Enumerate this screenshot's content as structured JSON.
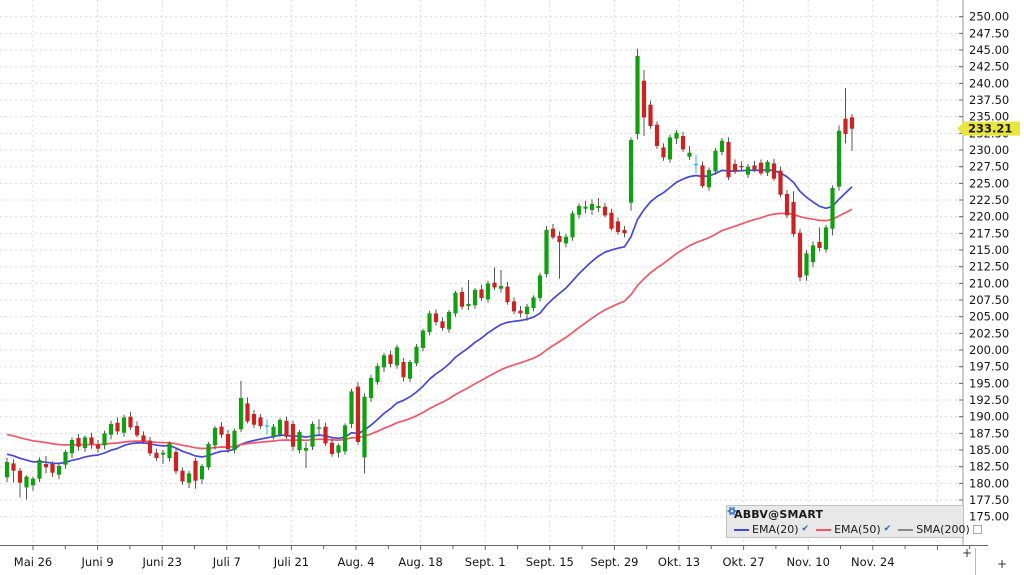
{
  "legend": {
    "title": "ABBV@SMART",
    "items": [
      {
        "label": "EMA(20)",
        "color": "#4646d8",
        "checked": true
      },
      {
        "label": "EMA(50)",
        "color": "#ee5868",
        "checked": true
      },
      {
        "label": "SMA(200)",
        "color": "#888888",
        "checked": false
      }
    ]
  },
  "controls": {
    "corner_plus": "+",
    "scroll_plus": "+"
  },
  "chart_data": {
    "type": "candlestick",
    "title": "ABBV@SMART",
    "xlabel": "",
    "ylabel": "",
    "grid": true,
    "y_axis_ticks": [
      "250.00",
      "247.50",
      "245.00",
      "242.50",
      "240.00",
      "237.50",
      "235.00",
      "232.50",
      "230.00",
      "227.50",
      "225.00",
      "222.50",
      "220.00",
      "217.50",
      "215.00",
      "212.50",
      "210.00",
      "207.50",
      "205.00",
      "202.50",
      "200.00",
      "197.50",
      "195.00",
      "192.50",
      "190.00",
      "187.50",
      "185.00",
      "182.50",
      "180.00",
      "177.50",
      "175.00"
    ],
    "y_tick_values": [
      250,
      247.5,
      245,
      242.5,
      240,
      237.5,
      235,
      232.5,
      230,
      227.5,
      225,
      222.5,
      220,
      217.5,
      215,
      212.5,
      210,
      207.5,
      205,
      202.5,
      200,
      197.5,
      195,
      192.5,
      190,
      187.5,
      185,
      182.5,
      180,
      177.5,
      175
    ],
    "y_range_visible": [
      170.8,
      252.5
    ],
    "x_axis_labels": [
      "Mai 26",
      "Juni 9",
      "Juni 23",
      "Juli 7",
      "Juli 21",
      "Aug. 4",
      "Aug. 18",
      "Sept. 1",
      "Sept. 15",
      "Sept. 29",
      "Okt. 13",
      "Okt. 27",
      "Nov. 10",
      "Nov. 24"
    ],
    "last_price": 233.21,
    "last_price_label": "233.21",
    "overlays": [
      {
        "name": "EMA(20)",
        "type": "ema",
        "period": 20,
        "seed": 184.5,
        "color": "#4646d8",
        "visible": true
      },
      {
        "name": "EMA(50)",
        "type": "ema",
        "period": 50,
        "seed": 187.5,
        "color": "#ee5868",
        "visible": true
      },
      {
        "name": "SMA(200)",
        "type": "sma",
        "period": 200,
        "color": "#888888",
        "visible": false
      }
    ],
    "colors": {
      "up": "#0fa00f",
      "down": "#cc2222",
      "neutral": "#35b8c8",
      "wick": "#555555",
      "grid": "#d9d9d9",
      "axis_text": "#141414",
      "axis_line": "#666666",
      "border": "#9a9a9a",
      "price_tag_bg": "#e9e43e",
      "price_tag_text": "#1a1a00"
    },
    "candles": [
      [
        180.9,
        183.8,
        180.2,
        183.2
      ],
      [
        183.0,
        183.6,
        180.1,
        181.9
      ],
      [
        181.9,
        182.3,
        177.9,
        180.1
      ],
      [
        179.4,
        181.2,
        177.6,
        181.0
      ],
      [
        179.7,
        181.0,
        178.9,
        180.7
      ],
      [
        180.7,
        183.9,
        180.2,
        183.5
      ],
      [
        182.9,
        184.1,
        181.5,
        182.4
      ],
      [
        182.9,
        183.3,
        181.0,
        181.6
      ],
      [
        181.3,
        183.0,
        180.6,
        182.6
      ],
      [
        182.8,
        185.0,
        182.2,
        184.7
      ],
      [
        184.5,
        186.9,
        183.8,
        186.5
      ],
      [
        186.8,
        187.4,
        184.9,
        185.5
      ],
      [
        185.3,
        187.2,
        184.7,
        186.9
      ],
      [
        186.9,
        187.6,
        185.2,
        185.9
      ],
      [
        185.8,
        186.5,
        184.6,
        185.2
      ],
      [
        185.7,
        187.9,
        185.1,
        187.5
      ],
      [
        187.3,
        189.4,
        186.6,
        188.9
      ],
      [
        189.1,
        189.9,
        187.3,
        187.8
      ],
      [
        187.6,
        190.3,
        187.0,
        189.9
      ],
      [
        190.0,
        190.7,
        188.0,
        188.4
      ],
      [
        188.6,
        189.3,
        186.9,
        187.2
      ],
      [
        187.2,
        187.8,
        185.9,
        186.3
      ],
      [
        186.4,
        187.0,
        184.1,
        184.5
      ],
      [
        184.6,
        185.2,
        183.4,
        183.8
      ],
      [
        184.3,
        185.0,
        182.9,
        184.6
      ],
      [
        183.8,
        186.3,
        183.3,
        186.0
      ],
      [
        184.7,
        185.2,
        181.4,
        181.8
      ],
      [
        181.9,
        182.4,
        179.8,
        180.3
      ],
      [
        180.1,
        181.9,
        179.3,
        181.5
      ],
      [
        183.4,
        183.8,
        179.2,
        180.4
      ],
      [
        180.6,
        182.9,
        179.9,
        182.6
      ],
      [
        182.4,
        186.2,
        182.0,
        185.9
      ],
      [
        185.7,
        188.6,
        185.1,
        188.3
      ],
      [
        188.5,
        189.2,
        186.8,
        187.3
      ],
      [
        187.4,
        188.0,
        184.6,
        185.1
      ],
      [
        185.0,
        188.2,
        184.5,
        187.9
      ],
      [
        188.1,
        195.4,
        187.7,
        192.8
      ],
      [
        192.0,
        192.9,
        189.0,
        189.3
      ],
      [
        190.4,
        191.0,
        188.3,
        188.8
      ],
      [
        189.9,
        190.4,
        188.2,
        188.6
      ],
      [
        188.5,
        189.6,
        187.3,
        188.7,
        1
      ],
      [
        187.0,
        188.9,
        186.6,
        188.5
      ],
      [
        187.3,
        189.8,
        186.9,
        189.5
      ],
      [
        189.4,
        190.0,
        186.7,
        187.0
      ],
      [
        188.9,
        189.4,
        184.9,
        185.5
      ],
      [
        185.0,
        188.0,
        184.5,
        187.7
      ],
      [
        184.9,
        186.2,
        182.3,
        185.3
      ],
      [
        185.5,
        189.3,
        185.0,
        188.9
      ],
      [
        188.2,
        189.6,
        187.2,
        188.4
      ],
      [
        188.5,
        189.1,
        185.6,
        186.0
      ],
      [
        186.1,
        186.7,
        184.0,
        184.4
      ],
      [
        184.6,
        186.0,
        183.9,
        185.7
      ],
      [
        184.8,
        189.0,
        184.3,
        188.7
      ],
      [
        188.9,
        194.2,
        188.3,
        193.8
      ],
      [
        194.5,
        195.2,
        185.8,
        186.2
      ],
      [
        183.9,
        193.5,
        181.5,
        193.0
      ],
      [
        192.8,
        196.3,
        192.2,
        195.8
      ],
      [
        195.2,
        198.0,
        194.8,
        197.6
      ],
      [
        197.4,
        199.6,
        196.7,
        199.2
      ],
      [
        199.3,
        199.9,
        197.4,
        197.9
      ],
      [
        197.7,
        200.8,
        197.2,
        200.4
      ],
      [
        198.2,
        198.8,
        195.3,
        195.9
      ],
      [
        195.7,
        198.5,
        195.2,
        198.2
      ],
      [
        198.0,
        200.9,
        197.6,
        200.5
      ],
      [
        200.3,
        203.2,
        199.8,
        202.9
      ],
      [
        202.7,
        205.9,
        202.2,
        205.5
      ],
      [
        205.5,
        206.1,
        203.7,
        204.2
      ],
      [
        204.3,
        204.9,
        202.9,
        203.3
      ],
      [
        203.1,
        206.0,
        202.6,
        205.7
      ],
      [
        205.5,
        208.9,
        205.0,
        208.6
      ],
      [
        208.7,
        209.4,
        206.1,
        206.5
      ],
      [
        206.6,
        210.5,
        206.0,
        206.9
      ],
      [
        206.7,
        209.3,
        206.2,
        209.0
      ],
      [
        209.1,
        209.8,
        207.4,
        207.8
      ],
      [
        207.6,
        210.4,
        207.1,
        210.0
      ],
      [
        210.1,
        212.4,
        209.0,
        209.4
      ],
      [
        209.2,
        212.0,
        208.6,
        209.6
      ],
      [
        209.5,
        210.2,
        206.8,
        207.2
      ],
      [
        207.3,
        207.9,
        205.4,
        205.8
      ],
      [
        205.9,
        206.6,
        204.9,
        205.5
      ],
      [
        205.4,
        206.9,
        204.4,
        206.5
      ],
      [
        206.3,
        208.2,
        205.8,
        207.9
      ],
      [
        207.8,
        211.6,
        207.3,
        211.2
      ],
      [
        211.4,
        218.6,
        210.9,
        218.0
      ],
      [
        218.2,
        218.9,
        216.6,
        216.9
      ],
      [
        217.1,
        217.8,
        210.7,
        216.2
      ],
      [
        216.0,
        217.4,
        215.4,
        217.0
      ],
      [
        216.9,
        220.9,
        216.4,
        220.5
      ],
      [
        220.3,
        222.0,
        219.7,
        221.6
      ],
      [
        221.2,
        222.4,
        220.5,
        221.5
      ],
      [
        221.0,
        222.6,
        220.3,
        221.9
      ],
      [
        221.3,
        222.8,
        220.7,
        221.6
      ],
      [
        221.5,
        222.1,
        219.9,
        220.2
      ],
      [
        220.6,
        221.2,
        217.9,
        218.2
      ],
      [
        219.3,
        219.9,
        217.3,
        217.7
      ],
      [
        218.0,
        218.6,
        216.9,
        217.5
      ],
      [
        222.1,
        231.9,
        220.9,
        231.5
      ],
      [
        232.4,
        245.2,
        231.6,
        244.1
      ],
      [
        240.4,
        242.0,
        232.1,
        234.9
      ],
      [
        236.8,
        237.4,
        233.2,
        233.6
      ],
      [
        233.8,
        234.3,
        230.2,
        230.6
      ],
      [
        230.4,
        231.0,
        228.4,
        228.9
      ],
      [
        228.6,
        232.3,
        228.1,
        231.9
      ],
      [
        231.7,
        233.0,
        230.9,
        232.6
      ],
      [
        232.1,
        232.7,
        229.7,
        230.1
      ],
      [
        229.0,
        230.6,
        228.5,
        229.6
      ],
      [
        227.9,
        229.3,
        226.5,
        227.8,
        1
      ],
      [
        227.7,
        228.3,
        224.3,
        224.6
      ],
      [
        224.4,
        227.4,
        223.9,
        227.0
      ],
      [
        226.8,
        230.3,
        226.3,
        229.9
      ],
      [
        229.7,
        231.8,
        229.2,
        231.4
      ],
      [
        231.2,
        231.9,
        225.5,
        225.9
      ],
      [
        227.9,
        228.6,
        226.4,
        226.8
      ],
      [
        227.6,
        228.3,
        226.8,
        227.4
      ],
      [
        226.3,
        227.9,
        225.8,
        227.5
      ],
      [
        227.7,
        228.4,
        226.7,
        227.1
      ],
      [
        228.1,
        228.6,
        226.2,
        226.5
      ],
      [
        226.6,
        228.5,
        226.1,
        228.2
      ],
      [
        228.0,
        228.7,
        225.4,
        225.7
      ],
      [
        226.9,
        227.5,
        222.9,
        223.3
      ],
      [
        223.4,
        224.0,
        219.8,
        220.2
      ],
      [
        222.2,
        223.8,
        217.0,
        217.4
      ],
      [
        217.6,
        218.2,
        210.3,
        210.9
      ],
      [
        211.2,
        215.0,
        210.4,
        214.5
      ],
      [
        213.2,
        216.3,
        212.4,
        215.7
      ],
      [
        216.2,
        218.4,
        214.8,
        215.3
      ],
      [
        215.1,
        218.8,
        214.6,
        218.4
      ],
      [
        218.2,
        224.7,
        217.2,
        224.3
      ],
      [
        224.5,
        233.7,
        223.9,
        232.9
      ],
      [
        234.7,
        239.3,
        231.0,
        232.4
      ],
      [
        234.9,
        235.4,
        229.9,
        233.21
      ]
    ]
  }
}
